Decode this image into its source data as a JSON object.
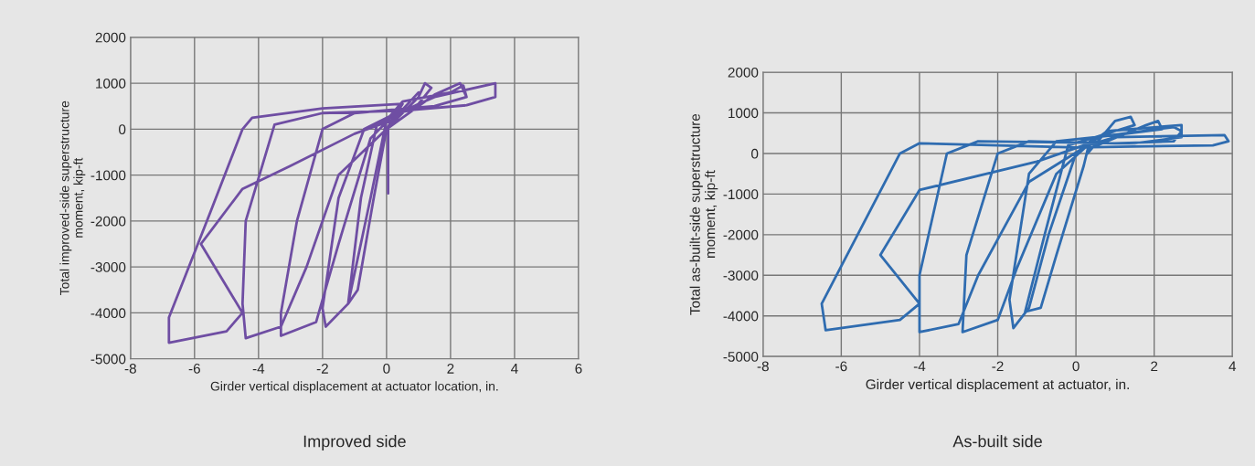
{
  "chart_data": [
    {
      "type": "line",
      "xlabel": "Girder vertical displacement at actuator location, in.",
      "ylabel": "Total improved-side superstructure\nmoment, kip-ft",
      "xlim": [
        -8,
        6
      ],
      "xticks": [
        -8,
        -6,
        -4,
        -2,
        0,
        2,
        4,
        6
      ],
      "ylim": [
        -5000,
        2000
      ],
      "yticks": [
        -5000,
        -4000,
        -3000,
        -2000,
        -1000,
        0,
        1000,
        2000
      ],
      "grid": true,
      "annotations": [
        "Improved side"
      ],
      "series": [
        {
          "color": "#6f4ea3",
          "x": [
            0.05,
            0.05,
            0.0,
            1.0,
            1.2,
            1.4,
            1.0,
            0.3,
            -0.3,
            -0.8,
            -1.2,
            -0.9,
            -0.4,
            0.0,
            1.5,
            2.3,
            2.5,
            1.5,
            0.3,
            -0.7,
            -1.5,
            -2.0,
            -1.9,
            -1.2,
            -0.5,
            0.0,
            0.5,
            2.0,
            2.4,
            2.5,
            1.5,
            -1.0,
            -2.0,
            -2.8,
            -3.3,
            -3.3,
            -2.2,
            -1.5,
            -0.5,
            0.2,
            1.5,
            3.4,
            3.4,
            2.5,
            0.5,
            -2.0,
            -3.5,
            -4.4,
            -4.5,
            -4.4,
            -3.3,
            -2.5,
            -1.5,
            0.0,
            0.5,
            -2.0,
            -4.2,
            -4.5,
            -5.5,
            -6.8,
            -6.8,
            -5.0,
            -4.5,
            -5.8,
            -4.5,
            -3.0,
            -1.0,
            0.2,
            1.0
          ],
          "values": [
            -1400,
            0,
            0,
            700,
            1000,
            900,
            550,
            300,
            100,
            -1500,
            -3800,
            -3500,
            -1500,
            0,
            750,
            1000,
            700,
            500,
            350,
            0,
            -1500,
            -3900,
            -4300,
            -3800,
            -1500,
            200,
            600,
            800,
            950,
            700,
            500,
            350,
            0,
            -2000,
            -4000,
            -4500,
            -4200,
            -2500,
            -200,
            300,
            700,
            1000,
            700,
            520,
            400,
            350,
            100,
            -2000,
            -3800,
            -4550,
            -4300,
            -3000,
            -1000,
            0,
            550,
            450,
            250,
            0,
            -1800,
            -4100,
            -4650,
            -4400,
            -4000,
            -2500,
            -1300,
            -800,
            -100,
            200,
            800
          ]
        }
      ]
    },
    {
      "type": "line",
      "xlabel": "Girder vertical displacement at actuator, in.",
      "ylabel": "Total as-built-side superstructure\nmoment, kip-ft",
      "xlim": [
        -8,
        4
      ],
      "xticks": [
        -8,
        -6,
        -4,
        -2,
        0,
        2,
        4
      ],
      "ylim": [
        -5000,
        2000
      ],
      "yticks": [
        -5000,
        -4000,
        -3000,
        -2000,
        -1000,
        0,
        1000,
        2000
      ],
      "grid": true,
      "annotations": [
        "As-built side"
      ],
      "series": [
        {
          "color": "#2f6cb0",
          "x": [
            0.3,
            1.0,
            1.4,
            1.5,
            0.5,
            -0.2,
            -0.8,
            -1.3,
            -0.9,
            -0.5,
            0.2,
            0.3,
            1.8,
            2.1,
            2.2,
            1.0,
            -0.5,
            -1.2,
            -1.7,
            -1.6,
            -1.2,
            -0.7,
            0.0,
            0.5,
            2.5,
            2.7,
            2.5,
            1.0,
            -1.2,
            -2.0,
            -2.8,
            -2.9,
            -2.0,
            -1.5,
            -0.5,
            0.3,
            0.8,
            2.7,
            2.7,
            1.5,
            -2.5,
            -3.3,
            -4.0,
            -4.0,
            -3.0,
            -2.5,
            -1.2,
            0.3,
            1.0,
            3.8,
            3.9,
            3.5,
            0.0,
            -4.0,
            -4.5,
            -6.5,
            -6.4,
            -4.5,
            -4.0,
            -5.0,
            -4.0,
            -1.0,
            0.5
          ],
          "values": [
            0,
            800,
            900,
            700,
            400,
            200,
            -2000,
            -3900,
            -3800,
            -2500,
            -300,
            100,
            700,
            800,
            600,
            450,
            300,
            -500,
            -3600,
            -4300,
            -3800,
            -2000,
            0,
            400,
            650,
            550,
            300,
            250,
            300,
            0,
            -2500,
            -4400,
            -4100,
            -2800,
            -500,
            200,
            550,
            700,
            400,
            250,
            300,
            0,
            -3000,
            -4400,
            -4200,
            -3000,
            -700,
            200,
            400,
            450,
            300,
            200,
            150,
            250,
            0,
            -3700,
            -4350,
            -4100,
            -3700,
            -2500,
            -900,
            -200,
            300
          ]
        }
      ]
    }
  ]
}
